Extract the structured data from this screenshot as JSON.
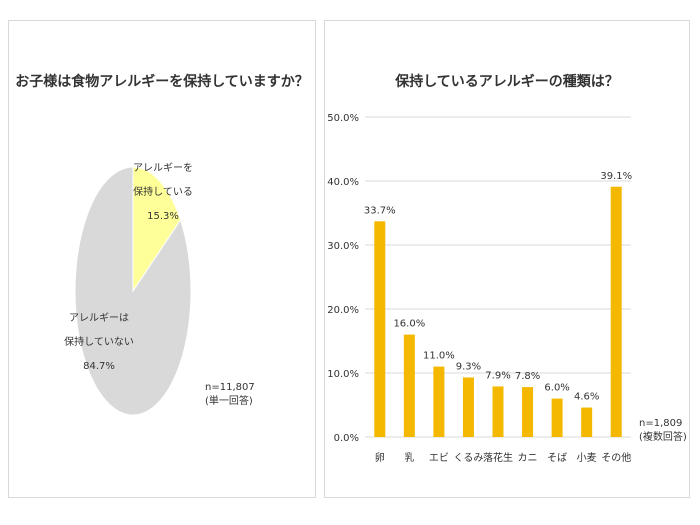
{
  "chart_data": [
    {
      "type": "pie",
      "title": "お子様は食物アレルギーを保持していますか？",
      "slices": [
        {
          "label_line1": "アレルギーを",
          "label_line2": "保持している",
          "value": 15.3,
          "value_label": "15.3%",
          "color": "#FFFF99"
        },
        {
          "label_line1": "アレルギーは",
          "label_line2": "保持していない",
          "value": 84.7,
          "value_label": "84.7%",
          "color": "#D9D9D9"
        }
      ],
      "note_line1": "n=11,807",
      "note_line2": "(単一回答)"
    },
    {
      "type": "bar",
      "title": "保持しているアレルギーの種類は？",
      "categories": [
        "卵",
        "乳",
        "エビ",
        "くるみ",
        "落花生",
        "カニ",
        "そば",
        "小麦",
        "その他"
      ],
      "values": [
        33.7,
        16.0,
        11.0,
        9.3,
        7.9,
        7.8,
        6.0,
        4.6,
        39.1
      ],
      "value_labels": [
        "33.7%",
        "16.0%",
        "11.0%",
        "9.3%",
        "7.9%",
        "7.8%",
        "6.0%",
        "4.6%",
        "39.1%"
      ],
      "ylim": [
        0,
        50
      ],
      "yticks": [
        "0.0%",
        "10.0%",
        "20.0%",
        "30.0%",
        "40.0%",
        "50.0%"
      ],
      "grid": true,
      "bar_color": "#F5B800",
      "note_line1": "n=1,809",
      "note_line2": "(複数回答)"
    }
  ]
}
